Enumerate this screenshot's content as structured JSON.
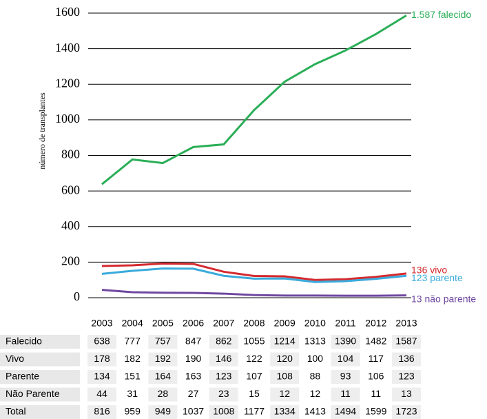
{
  "chart_data": {
    "type": "line",
    "y_label": "número de transplantes",
    "categories": [
      "2003",
      "2004",
      "2005",
      "2006",
      "2007",
      "2008",
      "2009",
      "2010",
      "2011",
      "2012",
      "2013"
    ],
    "series": [
      {
        "name": "Falecido",
        "color": "#2aae57",
        "values": [
          638,
          777,
          757,
          847,
          862,
          1055,
          1214,
          1313,
          1390,
          1482,
          1587
        ]
      },
      {
        "name": "Vivo",
        "color": "#d42a2e",
        "values": [
          178,
          182,
          192,
          190,
          146,
          122,
          120,
          100,
          104,
          117,
          136
        ]
      },
      {
        "name": "Parente",
        "color": "#3aaadc",
        "values": [
          134,
          151,
          164,
          163,
          123,
          107,
          108,
          88,
          93,
          106,
          123
        ]
      },
      {
        "name": "Não Parente",
        "color": "#6f47a0",
        "values": [
          44,
          31,
          28,
          27,
          23,
          15,
          12,
          12,
          11,
          11,
          13
        ]
      }
    ],
    "total": {
      "name": "Total",
      "values": [
        816,
        959,
        949,
        1037,
        1008,
        1177,
        1334,
        1413,
        1494,
        1599,
        1723
      ]
    },
    "end_labels": [
      "1.587 falecido",
      "136 vivo",
      "123  parente",
      "13 não parente"
    ],
    "ylim": [
      0,
      1600
    ],
    "yticks": [
      0,
      200,
      400,
      600,
      800,
      1000,
      1200,
      1400,
      1600
    ],
    "grid": true
  }
}
